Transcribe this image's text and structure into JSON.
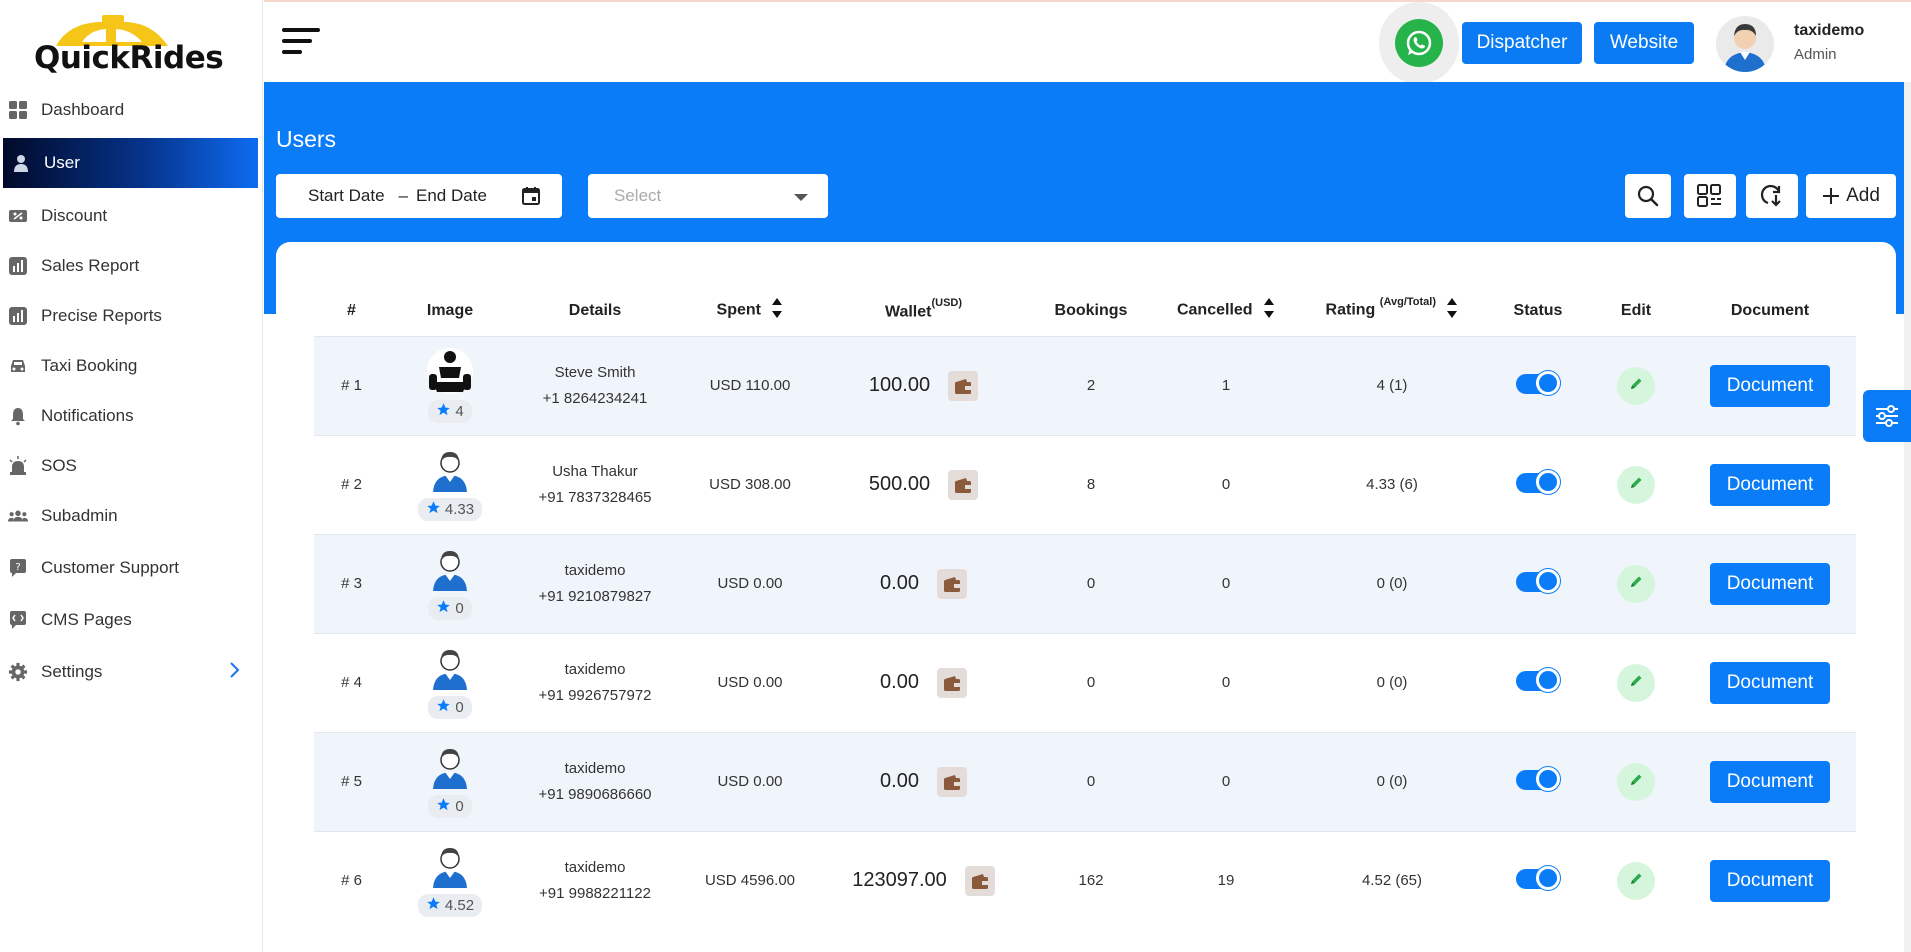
{
  "brand": {
    "name": "QuickRides"
  },
  "sidebar": {
    "items": [
      {
        "label": "Dashboard",
        "icon": "dashboard-icon"
      },
      {
        "label": "User",
        "icon": "user-icon",
        "active": true
      },
      {
        "label": "Discount",
        "icon": "discount-icon"
      },
      {
        "label": "Sales Report",
        "icon": "chart-icon"
      },
      {
        "label": "Precise Reports",
        "icon": "chart-icon"
      },
      {
        "label": "Taxi Booking",
        "icon": "car-icon"
      },
      {
        "label": "Notifications",
        "icon": "bell-icon"
      },
      {
        "label": "SOS",
        "icon": "alarm-icon"
      },
      {
        "label": "Subadmin",
        "icon": "group-icon"
      },
      {
        "label": "Customer Support",
        "icon": "support-icon"
      },
      {
        "label": "CMS Pages",
        "icon": "code-icon"
      },
      {
        "label": "Settings",
        "icon": "gear-icon"
      }
    ]
  },
  "header": {
    "dispatcher_label": "Dispatcher",
    "website_label": "Website",
    "user_name": "taxidemo",
    "user_role": "Admin"
  },
  "page": {
    "title": "Users",
    "start_date_placeholder": "Start Date",
    "date_separator": "–",
    "end_date_placeholder": "End Date",
    "select_placeholder": "Select",
    "add_label": "Add"
  },
  "table": {
    "headers": {
      "num": "#",
      "image": "Image",
      "details": "Details",
      "spent": "Spent",
      "wallet": "Wallet",
      "wallet_unit": "(USD)",
      "bookings": "Bookings",
      "cancelled": "Cancelled",
      "rating": "Rating",
      "rating_note": "(Avg/Total)",
      "status": "Status",
      "edit": "Edit",
      "document": "Document"
    },
    "rows": [
      {
        "num": "# 1",
        "rating_badge": "4",
        "name": "Steve Smith",
        "phone": "+1 8264234241",
        "spent": "USD 110.00",
        "wallet": "100.00",
        "bookings": "2",
        "cancelled": "1",
        "rating": "4 (1)",
        "status": true,
        "doc_label": "Document",
        "avatar": "custom"
      },
      {
        "num": "# 2",
        "rating_badge": "4.33",
        "name": "Usha Thakur",
        "phone": "+91 7837328465",
        "spent": "USD 308.00",
        "wallet": "500.00",
        "bookings": "8",
        "cancelled": "0",
        "rating": "4.33 (6)",
        "status": true,
        "doc_label": "Document",
        "avatar": "default"
      },
      {
        "num": "# 3",
        "rating_badge": "0",
        "name": "taxidemo",
        "phone": "+91 9210879827",
        "spent": "USD 0.00",
        "wallet": "0.00",
        "bookings": "0",
        "cancelled": "0",
        "rating": "0 (0)",
        "status": true,
        "doc_label": "Document",
        "avatar": "default"
      },
      {
        "num": "# 4",
        "rating_badge": "0",
        "name": "taxidemo",
        "phone": "+91 9926757972",
        "spent": "USD 0.00",
        "wallet": "0.00",
        "bookings": "0",
        "cancelled": "0",
        "rating": "0 (0)",
        "status": true,
        "doc_label": "Document",
        "avatar": "default"
      },
      {
        "num": "# 5",
        "rating_badge": "0",
        "name": "taxidemo",
        "phone": "+91 9890686660",
        "spent": "USD 0.00",
        "wallet": "0.00",
        "bookings": "0",
        "cancelled": "0",
        "rating": "0 (0)",
        "status": true,
        "doc_label": "Document",
        "avatar": "default"
      },
      {
        "num": "# 6",
        "rating_badge": "4.52",
        "name": "taxidemo",
        "phone": "+91 9988221122",
        "spent": "USD 4596.00",
        "wallet": "123097.00",
        "bookings": "162",
        "cancelled": "19",
        "rating": "4.52 (65)",
        "status": true,
        "doc_label": "Document",
        "avatar": "default"
      }
    ]
  },
  "colors": {
    "primary": "#0a7cf7",
    "sidebar_active_dark": "#010a2a",
    "whatsapp": "#25b34a",
    "edit_bg": "#d6f5dd",
    "row_alt": "#f0f5fc"
  }
}
